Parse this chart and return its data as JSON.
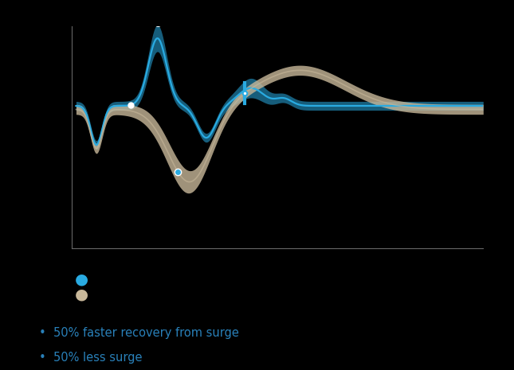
{
  "background_color": "#000000",
  "blue_color": "#29ABE2",
  "tan_color": "#C8B89A",
  "bullet_color": "#2980B9",
  "bullet_text1": "50% faster recovery from surge",
  "bullet_text2": "50% less surge",
  "legend_dot_blue": "#29ABE2",
  "legend_dot_tan": "#C8B89A",
  "font_size_bullets": 10.5
}
